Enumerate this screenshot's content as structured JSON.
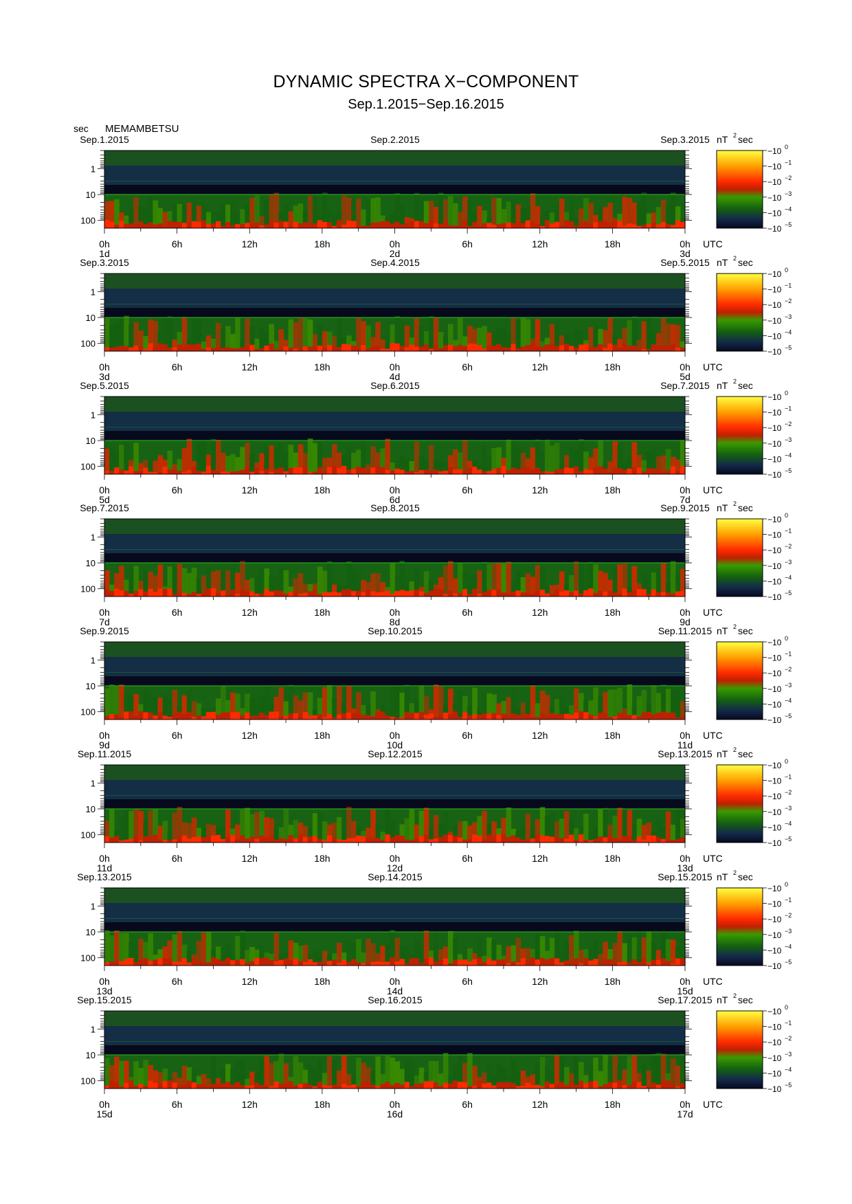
{
  "title": "DYNAMIC SPECTRA X−COMPONENT",
  "subtitle": "Sep.1.2015−Sep.16.2015",
  "y_unit": "sec",
  "station": "MEMAMBETSU",
  "colorbar_unit": "nT",
  "colorbar_unit_exp": "2",
  "colorbar_unit_tail": "sec",
  "colorbar_ticks": [
    {
      "base": "10",
      "exp": "0"
    },
    {
      "base": "10",
      "exp": "−1"
    },
    {
      "base": "10",
      "exp": "−2"
    },
    {
      "base": "10",
      "exp": "−3"
    },
    {
      "base": "10",
      "exp": "−4"
    },
    {
      "base": "10",
      "exp": "−5"
    }
  ],
  "colormap": [
    "#ffff40",
    "#ffa000",
    "#ff2a00",
    "#cc2a00",
    "#3a8a00",
    "#136010",
    "#142a4a",
    "#060820"
  ],
  "y_ticks": [
    "1",
    "10",
    "100"
  ],
  "x_ticks": [
    "0h",
    "6h",
    "12h",
    "18h",
    "0h",
    "6h",
    "12h",
    "18h",
    "0h"
  ],
  "utc_label": "UTC",
  "chart_data": {
    "type": "heatmap",
    "title": "DYNAMIC SPECTRA X−COMPONENT",
    "y_axis": {
      "label": "sec",
      "scale": "log",
      "ticks": [
        1,
        10,
        100
      ]
    },
    "x_axis": {
      "label": "UTC",
      "range_hours": [
        0,
        48
      ]
    },
    "color_scale": {
      "unit": "nT^2 sec",
      "range": [
        1e-05,
        1
      ],
      "scale": "log"
    },
    "panels": [
      {
        "date_left": "Sep.1.2015",
        "date_mid": "Sep.2.2015",
        "date_right": "Sep.3.2015",
        "day_left": "1d",
        "day_mid": "2d",
        "day_right": "3d"
      },
      {
        "date_left": "Sep.3.2015",
        "date_mid": "Sep.4.2015",
        "date_right": "Sep.5.2015",
        "day_left": "3d",
        "day_mid": "4d",
        "day_right": "5d"
      },
      {
        "date_left": "Sep.5.2015",
        "date_mid": "Sep.6.2015",
        "date_right": "Sep.7.2015",
        "day_left": "5d",
        "day_mid": "6d",
        "day_right": "7d"
      },
      {
        "date_left": "Sep.7.2015",
        "date_mid": "Sep.8.2015",
        "date_right": "Sep.9.2015",
        "day_left": "7d",
        "day_mid": "8d",
        "day_right": "9d"
      },
      {
        "date_left": "Sep.9.2015",
        "date_mid": "Sep.10.2015",
        "date_right": "Sep.11.2015",
        "day_left": "9d",
        "day_mid": "10d",
        "day_right": "11d"
      },
      {
        "date_left": "Sep.11.2015",
        "date_mid": "Sep.12.2015",
        "date_right": "Sep.13.2015",
        "day_left": "11d",
        "day_mid": "12d",
        "day_right": "13d"
      },
      {
        "date_left": "Sep.13.2015",
        "date_mid": "Sep.14.2015",
        "date_right": "Sep.15.2015",
        "day_left": "13d",
        "day_mid": "14d",
        "day_right": "15d"
      },
      {
        "date_left": "Sep.15.2015",
        "date_mid": "Sep.16.2015",
        "date_right": "Sep.17.2015",
        "day_left": "15d",
        "day_mid": "16d",
        "day_right": "17d"
      }
    ]
  }
}
